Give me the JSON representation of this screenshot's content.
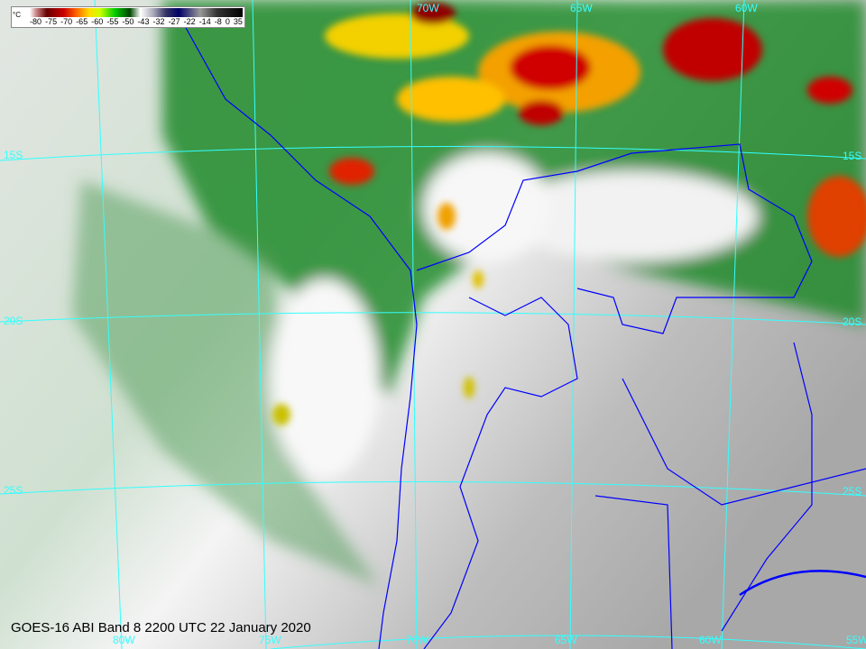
{
  "colorbar": {
    "unit": "°C",
    "ticks": [
      "-80",
      "-75",
      "-70",
      "-65",
      "-60",
      "-55",
      "-50",
      "-43",
      "-32",
      "-27",
      "-22",
      "-14",
      "-8",
      "0",
      "35"
    ]
  },
  "caption": "GOES-16 ABI Band 8 2200 UTC 22 January 2020",
  "grid": {
    "lon_labels_top": [
      "70W",
      "65W",
      "60W"
    ],
    "lon_labels_bottom": [
      "80W",
      "75W",
      "70W",
      "65W",
      "60W",
      "55W"
    ],
    "lat_labels_left": [
      "15S",
      "20S",
      "25S"
    ],
    "lat_labels_right": [
      "15S",
      "20S",
      "25S"
    ]
  },
  "colors": {
    "grid": "#33ffff",
    "borders": "#0000ff",
    "cold_cloud": "#ff0000",
    "mid_cloud": "#00aa00"
  }
}
